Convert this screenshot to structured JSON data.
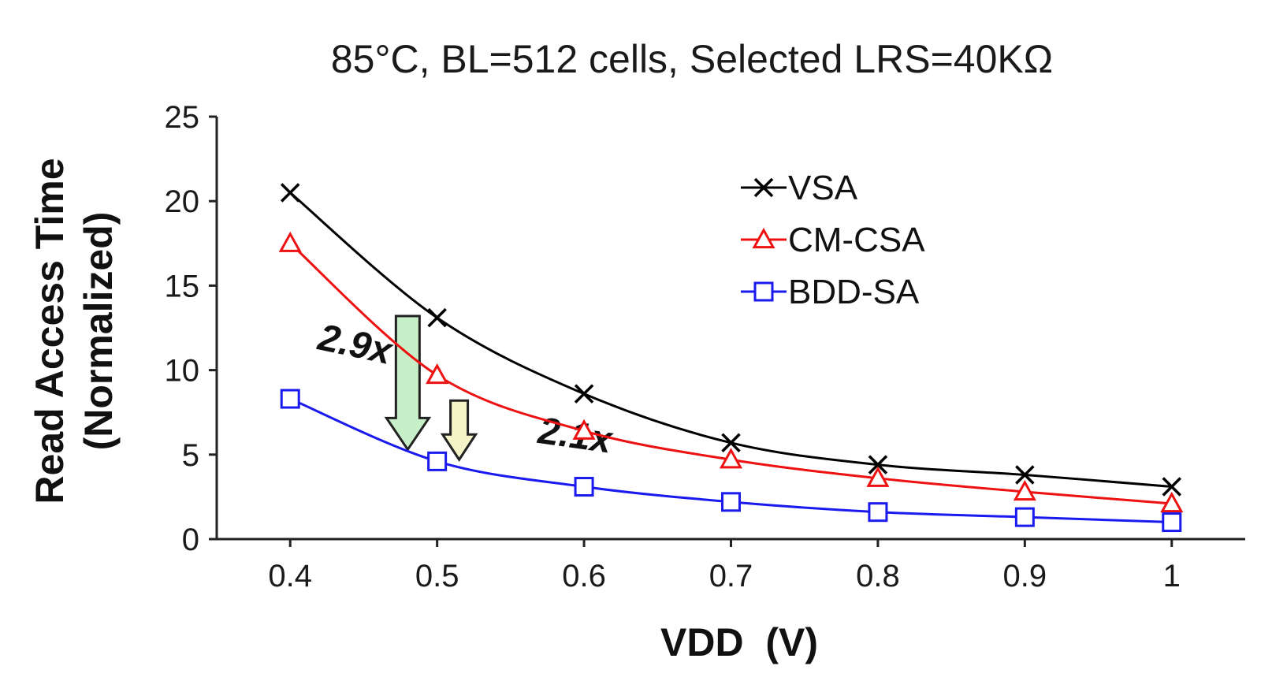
{
  "chart_data": {
    "type": "line",
    "title": "85°C, BL=512 cells, Selected LRS=40KΩ",
    "xlabel": "VDD  (V)",
    "ylabel_lines": [
      "Read Access Time",
      "(Normalized)"
    ],
    "x": [
      0.4,
      0.5,
      0.6,
      0.7,
      0.8,
      0.9,
      1.0
    ],
    "x_tick_labels": [
      "0.4",
      "0.5",
      "0.6",
      "0.7",
      "0.8",
      "0.9",
      "1"
    ],
    "xlim": [
      0.35,
      1.05
    ],
    "ylim": [
      0,
      25
    ],
    "y_ticks": [
      0,
      5,
      10,
      15,
      20,
      25
    ],
    "y_tick_labels": [
      "0",
      "5",
      "10",
      "15",
      "20",
      "25"
    ],
    "grid": false,
    "legend_position": "top-right",
    "series": [
      {
        "name": "VSA",
        "color": "#000000",
        "marker": "x",
        "values": [
          20.5,
          13.1,
          8.6,
          5.7,
          4.4,
          3.8,
          3.1
        ]
      },
      {
        "name": "CM-CSA",
        "color": "#ee1111",
        "marker": "triangle",
        "values": [
          17.5,
          9.7,
          6.4,
          4.7,
          3.6,
          2.8,
          2.1
        ]
      },
      {
        "name": "BDD-SA",
        "color": "#1a1aee",
        "marker": "square",
        "values": [
          8.3,
          4.6,
          3.1,
          2.2,
          1.6,
          1.3,
          1.0
        ]
      }
    ],
    "annotations": [
      {
        "text": "2.9x",
        "x": 0.48,
        "y_from": 13.2,
        "y_to": 5.3,
        "arrow_color": "#c8f0c8"
      },
      {
        "text": "2.1x",
        "x": 0.515,
        "y_from": 8.2,
        "y_to": 4.7,
        "arrow_color": "#f4f4c8"
      }
    ]
  }
}
